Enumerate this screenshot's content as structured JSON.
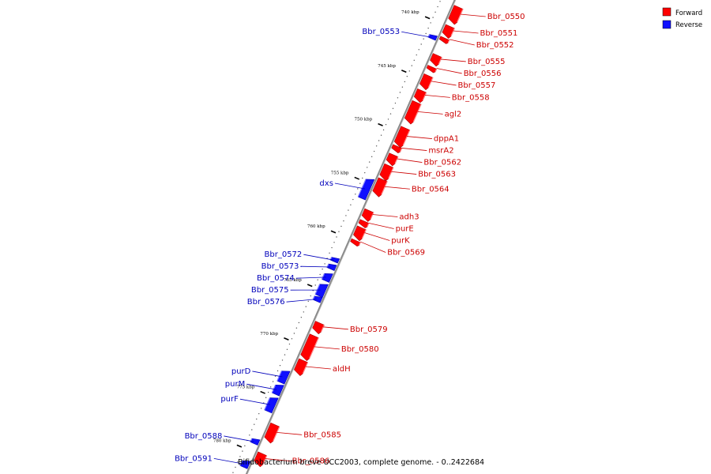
{
  "caption": "Bifidobacterium breve UCC2003, complete genome. - 0..2422684",
  "legend": {
    "forward": {
      "label": "Forward",
      "color": "#ff0000"
    },
    "reverse": {
      "label": "Reverse",
      "color": "#1010ff"
    }
  },
  "colors": {
    "forward_label": "#cc0000",
    "reverse_label": "#0000bb",
    "backbone": "#888888",
    "highlight": "#f08080"
  },
  "kbp_ticks": [
    {
      "pos_kbp": 740,
      "label": "740 kbp"
    },
    {
      "pos_kbp": 745,
      "label": "745 kbp"
    },
    {
      "pos_kbp": 750,
      "label": "750 kbp"
    },
    {
      "pos_kbp": 755,
      "label": "755 kbp"
    },
    {
      "pos_kbp": 760,
      "label": "760 kbp"
    },
    {
      "pos_kbp": 765,
      "label": "765 kbp"
    },
    {
      "pos_kbp": 770,
      "label": "770 kbp"
    },
    {
      "pos_kbp": 775,
      "label": "775 kbp"
    },
    {
      "pos_kbp": 780,
      "label": "780 kbp"
    }
  ],
  "genes": [
    {
      "name": "Bbr_0550",
      "strand": "forward",
      "start_kbp": 738.8,
      "end_kbp": 740.3
    },
    {
      "name": "Bbr_0551",
      "strand": "forward",
      "start_kbp": 740.6,
      "end_kbp": 741.6
    },
    {
      "name": "Bbr_0552",
      "strand": "forward",
      "start_kbp": 741.7,
      "end_kbp": 742.1
    },
    {
      "name": "Bbr_0553",
      "strand": "reverse",
      "start_kbp": 741.8,
      "end_kbp": 742.2
    },
    {
      "name": "Bbr_0555",
      "strand": "forward",
      "start_kbp": 743.3,
      "end_kbp": 744.2
    },
    {
      "name": "Bbr_0556",
      "strand": "forward",
      "start_kbp": 744.4,
      "end_kbp": 744.8
    },
    {
      "name": "Bbr_0557",
      "strand": "forward",
      "start_kbp": 745.2,
      "end_kbp": 746.4
    },
    {
      "name": "Bbr_0558",
      "strand": "forward",
      "start_kbp": 746.6,
      "end_kbp": 747.6
    },
    {
      "name": "agl2",
      "strand": "forward",
      "start_kbp": 747.7,
      "end_kbp": 749.6
    },
    {
      "name": "dppA1",
      "strand": "forward",
      "start_kbp": 750.1,
      "end_kbp": 751.8
    },
    {
      "name": "msrA2",
      "strand": "forward",
      "start_kbp": 751.8,
      "end_kbp": 752.3
    },
    {
      "name": "Bbr_0562",
      "strand": "forward",
      "start_kbp": 752.6,
      "end_kbp": 753.5
    },
    {
      "name": "Bbr_0563",
      "strand": "forward",
      "start_kbp": 753.6,
      "end_kbp": 754.9
    },
    {
      "name": "Bbr_0564",
      "strand": "forward",
      "start_kbp": 754.9,
      "end_kbp": 756.4
    },
    {
      "name": "dxs",
      "strand": "reverse",
      "start_kbp": 755.2,
      "end_kbp": 757.1
    },
    {
      "name": "adh3",
      "strand": "forward",
      "start_kbp": 757.8,
      "end_kbp": 758.7
    },
    {
      "name": "purE",
      "strand": "forward",
      "start_kbp": 758.8,
      "end_kbp": 759.3
    },
    {
      "name": "purK",
      "strand": "forward",
      "start_kbp": 759.4,
      "end_kbp": 760.5
    },
    {
      "name": "Bbr_0569",
      "strand": "forward",
      "start_kbp": 760.6,
      "end_kbp": 761.0
    },
    {
      "name": "Bbr_0572",
      "strand": "reverse",
      "start_kbp": 762.6,
      "end_kbp": 763.0
    },
    {
      "name": "Bbr_0573",
      "strand": "reverse",
      "start_kbp": 763.2,
      "end_kbp": 763.7
    },
    {
      "name": "Bbr_0574",
      "strand": "reverse",
      "start_kbp": 764.0,
      "end_kbp": 764.8
    },
    {
      "name": "Bbr_0575",
      "strand": "reverse",
      "start_kbp": 765.0,
      "end_kbp": 766.2
    },
    {
      "name": "Bbr_0576",
      "strand": "reverse",
      "start_kbp": 766.2,
      "end_kbp": 766.7
    },
    {
      "name": "Bbr_0579",
      "strand": "forward",
      "start_kbp": 768.3,
      "end_kbp": 769.2
    },
    {
      "name": "Bbr_0580",
      "strand": "forward",
      "start_kbp": 769.5,
      "end_kbp": 771.7
    },
    {
      "name": "aldH",
      "strand": "forward",
      "start_kbp": 771.8,
      "end_kbp": 773.1
    },
    {
      "name": "purD",
      "strand": "reverse",
      "start_kbp": 773.1,
      "end_kbp": 774.3
    },
    {
      "name": "purM",
      "strand": "reverse",
      "start_kbp": 774.4,
      "end_kbp": 775.4
    },
    {
      "name": "purF",
      "strand": "reverse",
      "start_kbp": 775.6,
      "end_kbp": 777.0
    },
    {
      "name": "Bbr_0585",
      "strand": "forward",
      "start_kbp": 777.8,
      "end_kbp": 779.4
    },
    {
      "name": "Bbr_0586",
      "strand": "forward",
      "start_kbp": 780.5,
      "end_kbp": 781.6
    },
    {
      "name": "Bbr_0588",
      "strand": "reverse",
      "start_kbp": 779.5,
      "end_kbp": 780.0
    },
    {
      "name": "Bbr_0591",
      "strand": "reverse",
      "start_kbp": 781.5,
      "end_kbp": 782.2
    }
  ]
}
